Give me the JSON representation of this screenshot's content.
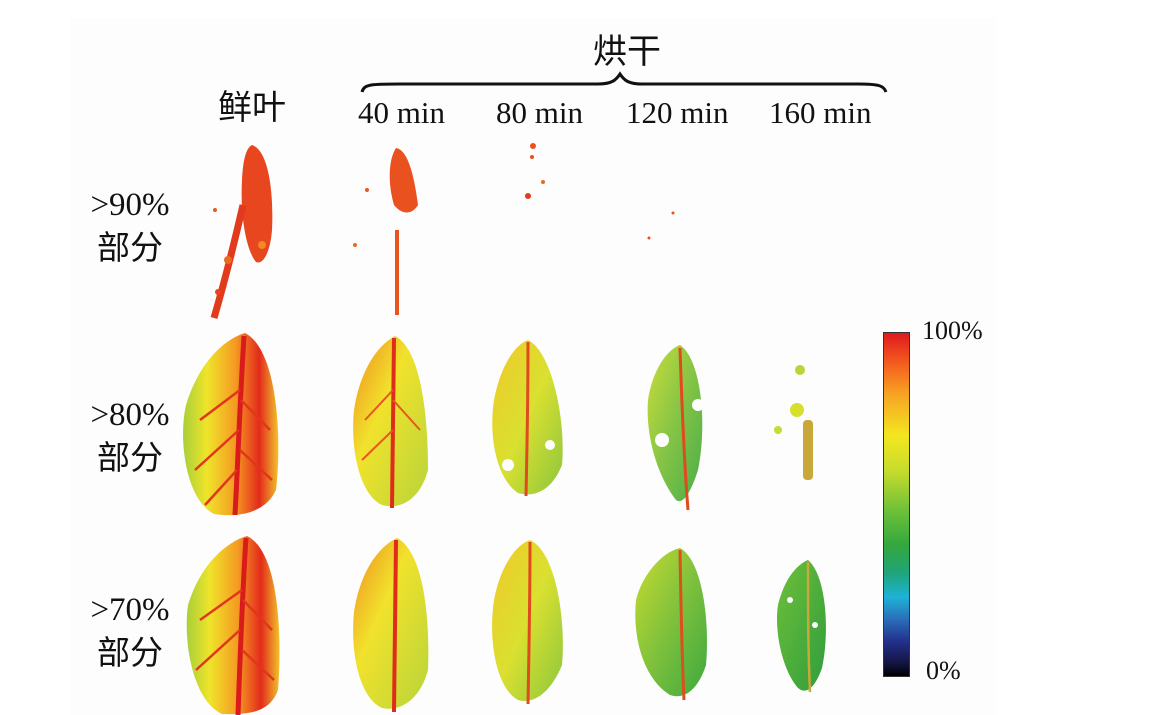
{
  "header": {
    "group_label": "烘干",
    "fresh_label": "鲜叶",
    "time_labels": [
      "40 min",
      "80 min",
      "120 min",
      "160 min"
    ]
  },
  "rows": [
    {
      "line1": ">90%",
      "line2": "部分"
    },
    {
      "line1": ">80%",
      "line2": "部分"
    },
    {
      "line1": ">70%",
      "line2": "部分"
    }
  ],
  "colorbar": {
    "max_label": "100%",
    "min_label": "0%"
  },
  "colors": {
    "red": "#e0191d",
    "orange": "#f58a22",
    "yellow": "#f2e628",
    "green": "#4bb13f"
  }
}
